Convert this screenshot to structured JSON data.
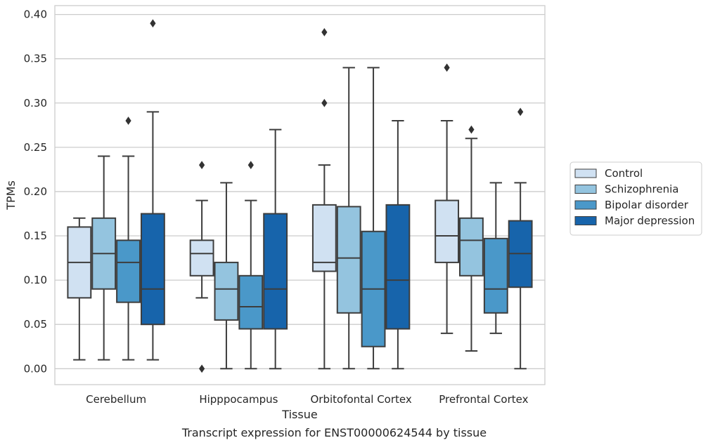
{
  "caption": "Transcript expression for ENST00000624544 by tissue",
  "chart_data": {
    "type": "box",
    "xlabel": "Tissue",
    "ylabel": "TPMs",
    "ylim": [
      -0.018,
      0.41
    ],
    "yticks": [
      "0.00",
      "0.05",
      "0.10",
      "0.15",
      "0.20",
      "0.25",
      "0.30",
      "0.35",
      "0.40"
    ],
    "grid": true,
    "legend_position": "right",
    "categories": [
      "Cerebellum",
      "Hipppocampus",
      "Orbitofontal Cortex",
      "Prefrontal Cortex"
    ],
    "series": [
      {
        "name": "Control",
        "color": "#d0e1f2",
        "boxes": [
          {
            "min": 0.01,
            "q1": 0.08,
            "median": 0.12,
            "q3": 0.16,
            "max": 0.17,
            "outliers": []
          },
          {
            "min": 0.08,
            "q1": 0.105,
            "median": 0.13,
            "q3": 0.145,
            "max": 0.19,
            "outliers": [
              0.23,
              0.0
            ]
          },
          {
            "min": 0.0,
            "q1": 0.11,
            "median": 0.12,
            "q3": 0.185,
            "max": 0.23,
            "outliers": [
              0.3,
              0.38
            ]
          },
          {
            "min": 0.04,
            "q1": 0.12,
            "median": 0.15,
            "q3": 0.19,
            "max": 0.28,
            "outliers": [
              0.34
            ]
          }
        ]
      },
      {
        "name": "Schizophrenia",
        "color": "#94c4df",
        "boxes": [
          {
            "min": 0.01,
            "q1": 0.09,
            "median": 0.13,
            "q3": 0.17,
            "max": 0.24,
            "outliers": []
          },
          {
            "min": 0.0,
            "q1": 0.055,
            "median": 0.09,
            "q3": 0.12,
            "max": 0.21,
            "outliers": []
          },
          {
            "min": 0.0,
            "q1": 0.063,
            "median": 0.125,
            "q3": 0.183,
            "max": 0.34,
            "outliers": []
          },
          {
            "min": 0.02,
            "q1": 0.105,
            "median": 0.145,
            "q3": 0.17,
            "max": 0.26,
            "outliers": [
              0.27
            ]
          }
        ]
      },
      {
        "name": "Bipolar disorder",
        "color": "#4a98c9",
        "boxes": [
          {
            "min": 0.01,
            "q1": 0.075,
            "median": 0.12,
            "q3": 0.145,
            "max": 0.24,
            "outliers": [
              0.28
            ]
          },
          {
            "min": 0.0,
            "q1": 0.045,
            "median": 0.07,
            "q3": 0.105,
            "max": 0.19,
            "outliers": [
              0.23
            ]
          },
          {
            "min": 0.0,
            "q1": 0.025,
            "median": 0.09,
            "q3": 0.155,
            "max": 0.34,
            "outliers": []
          },
          {
            "min": 0.04,
            "q1": 0.063,
            "median": 0.09,
            "q3": 0.147,
            "max": 0.21,
            "outliers": []
          }
        ]
      },
      {
        "name": "Major depression",
        "color": "#1764ab",
        "boxes": [
          {
            "min": 0.01,
            "q1": 0.05,
            "median": 0.09,
            "q3": 0.175,
            "max": 0.29,
            "outliers": [
              0.39
            ]
          },
          {
            "min": 0.0,
            "q1": 0.045,
            "median": 0.09,
            "q3": 0.175,
            "max": 0.27,
            "outliers": []
          },
          {
            "min": 0.0,
            "q1": 0.045,
            "median": 0.1,
            "q3": 0.185,
            "max": 0.28,
            "outliers": []
          },
          {
            "min": 0.0,
            "q1": 0.092,
            "median": 0.13,
            "q3": 0.167,
            "max": 0.21,
            "outliers": [
              0.29
            ]
          }
        ]
      }
    ]
  }
}
